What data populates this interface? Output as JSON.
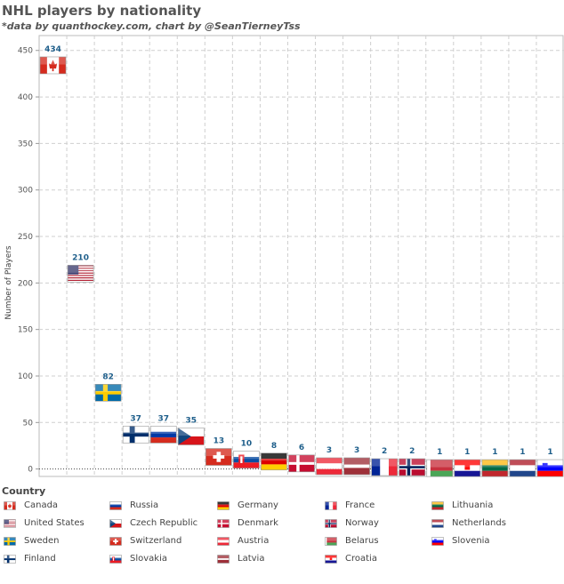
{
  "chart_data": {
    "type": "scatter",
    "title": "NHL players by nationality",
    "subtitle": "*data by quanthockey.com, chart by @SeanTierneyTss",
    "ylabel": "Number of Players",
    "ylim": [
      -8,
      466
    ],
    "yticks": [
      0,
      50,
      100,
      150,
      200,
      250,
      300,
      350,
      400,
      450
    ],
    "grid": true,
    "legend_title": "Country",
    "points": [
      {
        "country": "Canada",
        "value": 434,
        "flag": "canada-flag"
      },
      {
        "country": "United States",
        "value": 210,
        "flag": "usa-flag"
      },
      {
        "country": "Sweden",
        "value": 82,
        "flag": "sweden-flag"
      },
      {
        "country": "Finland",
        "value": 37,
        "flag": "finland-flag"
      },
      {
        "country": "Russia",
        "value": 37,
        "flag": "russia-flag"
      },
      {
        "country": "Czech Republic",
        "value": 35,
        "flag": "czech-flag"
      },
      {
        "country": "Switzerland",
        "value": 13,
        "flag": "switzerland-flag"
      },
      {
        "country": "Slovakia",
        "value": 10,
        "flag": "slovakia-flag"
      },
      {
        "country": "Germany",
        "value": 8,
        "flag": "germany-flag"
      },
      {
        "country": "Denmark",
        "value": 6,
        "flag": "denmark-flag"
      },
      {
        "country": "Austria",
        "value": 3,
        "flag": "austria-flag"
      },
      {
        "country": "Latvia",
        "value": 3,
        "flag": "latvia-flag"
      },
      {
        "country": "France",
        "value": 2,
        "flag": "france-flag"
      },
      {
        "country": "Norway",
        "value": 2,
        "flag": "norway-flag"
      },
      {
        "country": "Belarus",
        "value": 1,
        "flag": "belarus-flag"
      },
      {
        "country": "Croatia",
        "value": 1,
        "flag": "croatia-flag"
      },
      {
        "country": "Lithuania",
        "value": 1,
        "flag": "lithuania-flag"
      },
      {
        "country": "Netherlands",
        "value": 1,
        "flag": "netherlands-flag"
      },
      {
        "country": "Slovenia",
        "value": 1,
        "flag": "slovenia-flag"
      }
    ]
  }
}
